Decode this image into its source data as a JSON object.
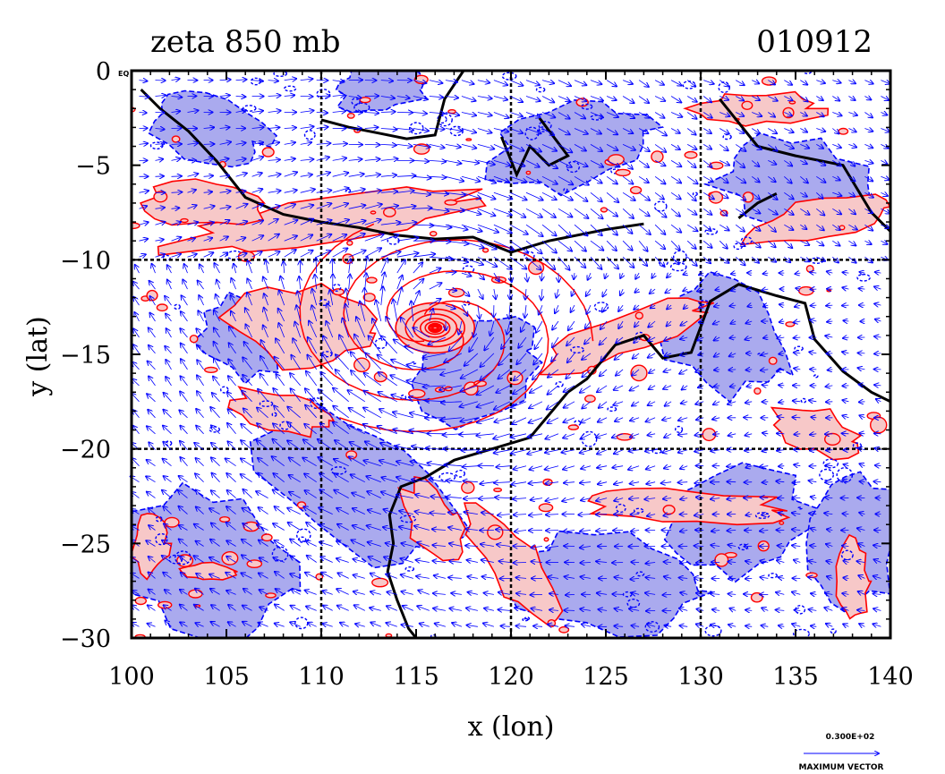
{
  "chart_data": {
    "type": "heatmap",
    "title": "zeta 850 mb",
    "date_label": "010912",
    "xlabel": "x (lon)",
    "ylabel": "y (lat)",
    "xlim": [
      100,
      140
    ],
    "ylim": [
      -30,
      0
    ],
    "x_ticks": [
      100,
      105,
      110,
      115,
      120,
      125,
      130,
      135,
      140
    ],
    "y_ticks": [
      0,
      -5,
      -10,
      -15,
      -20,
      -25,
      -30
    ],
    "x_tick_labels": [
      "100",
      "105",
      "110",
      "115",
      "120",
      "125",
      "130",
      "135",
      "140"
    ],
    "y_tick_labels": [
      "0",
      "−5",
      "−10",
      "−15",
      "−20",
      "−25",
      "−30"
    ],
    "y_top_suffix": "EQ",
    "grid_x": [
      110,
      120,
      130
    ],
    "grid_y": [
      -10,
      -20
    ],
    "grid": true,
    "colors": {
      "positive_fill": "#f7c8c8",
      "positive_contour": "#ff0000",
      "negative_fill": "#aaaaee",
      "negative_contour": "#0000ff",
      "vectors": "#0000ff",
      "coastline": "#000000"
    },
    "cyclone_center": {
      "lon": 116.0,
      "lat": -13.6
    },
    "legend": {
      "value_label": "0.300E+02",
      "caption": "MAXIMUM VECTOR"
    }
  }
}
